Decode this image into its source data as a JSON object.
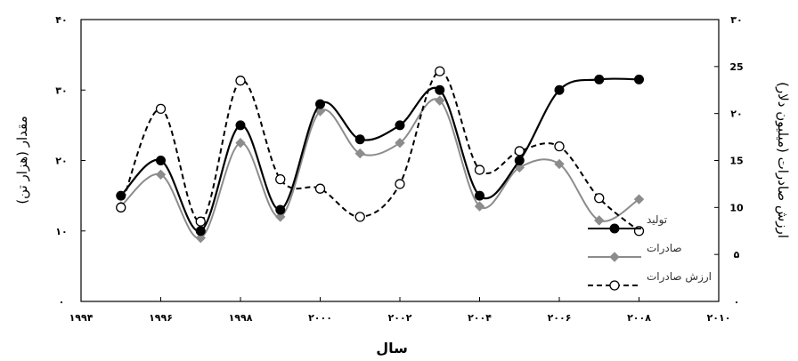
{
  "chart_data": {
    "type": "line",
    "xlabel": "سال",
    "ylabel_left": "مقدار (هزار تن)",
    "ylabel_right": "ارزش صادرات (میلیون دلار)",
    "x_ticks": [
      "۱۹۹۴",
      "۱۹۹۶",
      "۱۹۹۸",
      "۲۰۰۰",
      "۲۰۰۲",
      "۲۰۰۴",
      "۲۰۰۶",
      "۲۰۰۸",
      "۲۰۱۰"
    ],
    "x_tick_values": [
      1994,
      1996,
      1998,
      2000,
      2002,
      2004,
      2006,
      2008,
      2010
    ],
    "y_left_ticks": [
      "۰",
      "۱۰",
      "۲۰",
      "۳۰",
      "۴۰"
    ],
    "y_left_tick_values": [
      0,
      10,
      20,
      30,
      40
    ],
    "y_right_ticks": [
      "۰",
      "۵",
      "10",
      "15",
      "۲۰",
      "25",
      "۳۰"
    ],
    "y_right_tick_values": [
      0,
      5,
      10,
      15,
      20,
      25,
      30
    ],
    "xlim": [
      1994,
      2010
    ],
    "ylim_left": [
      0,
      40
    ],
    "ylim_right": [
      0,
      30
    ],
    "grid": false,
    "legend_position": "bottom-right",
    "series": [
      {
        "name": "تولید",
        "axis": "left",
        "style": "solid",
        "marker": "filled-circle",
        "color": "#000000",
        "x": [
          1995,
          1996,
          1997,
          1998,
          1999,
          2000,
          2001,
          2002,
          2003,
          2004,
          2005,
          2006,
          2007,
          2008
        ],
        "values": [
          15,
          20,
          10,
          25,
          13,
          28,
          23,
          25,
          30,
          15,
          20,
          30,
          31.5,
          31.5
        ]
      },
      {
        "name": "صادرات",
        "axis": "left",
        "style": "solid",
        "marker": "diamond",
        "color": "#8c8c8c",
        "x": [
          1995,
          1996,
          1997,
          1998,
          1999,
          2000,
          2001,
          2002,
          2003,
          2004,
          2005,
          2006,
          2007,
          2008
        ],
        "values": [
          13.5,
          18,
          9,
          22.5,
          12,
          27,
          21,
          22.5,
          28.5,
          13.5,
          19,
          19.5,
          11.5,
          14.5
        ]
      },
      {
        "name": "ارزش صادرات",
        "axis": "right",
        "style": "dashed",
        "marker": "open-circle",
        "color": "#000000",
        "x": [
          1995,
          1996,
          1997,
          1998,
          1999,
          2000,
          2001,
          2002,
          2003,
          2004,
          2005,
          2006,
          2007,
          2008
        ],
        "values": [
          10,
          20.5,
          8.5,
          23.5,
          13,
          12,
          9,
          12.5,
          24.5,
          14,
          16,
          16.5,
          11,
          7.5
        ]
      }
    ]
  }
}
